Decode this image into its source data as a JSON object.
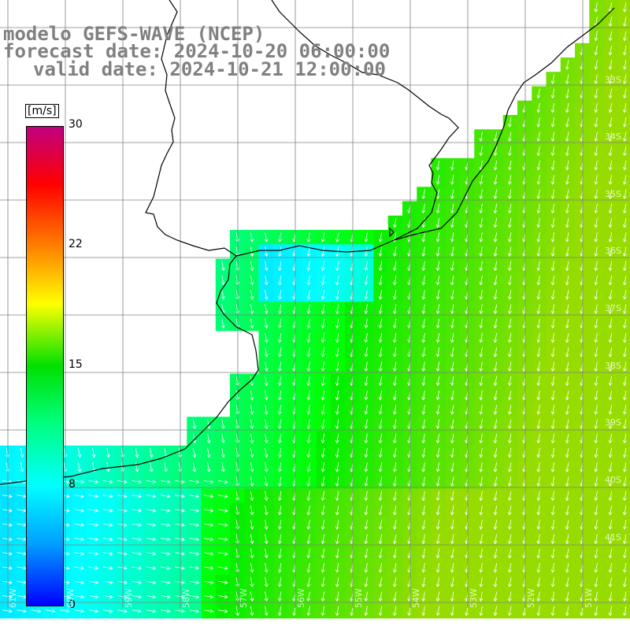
{
  "title": {
    "line1": "modelo GEFS-WAVE (NCEP)",
    "line2": "forecast date: 2024-10-20 06:00:00",
    "line3": "valid date: 2024-10-21 12:00:00"
  },
  "colorbar": {
    "unit": "[m/s]",
    "ticks": [
      "30",
      "22",
      "15",
      "8",
      "0"
    ],
    "tick_values": [
      30,
      22,
      15,
      8,
      0
    ],
    "colors": [
      "#0000ff",
      "#00a0ff",
      "#00ffff",
      "#00ff80",
      "#00e000",
      "#ffff00",
      "#ff8000",
      "#ff0000",
      "#c00080"
    ]
  },
  "lat_labels": [
    "33S",
    "34S",
    "35S",
    "36S",
    "37S",
    "38S",
    "39S",
    "40S",
    "41S"
  ],
  "lon_labels": [
    "61W",
    "60W",
    "59W",
    "58W",
    "57W",
    "56W",
    "55W",
    "54W",
    "53W",
    "52W",
    "51W"
  ],
  "colors": {
    "land": "#ffffff",
    "grid": "#808080",
    "coast": "#000000",
    "arrows": "#ffffff"
  }
}
